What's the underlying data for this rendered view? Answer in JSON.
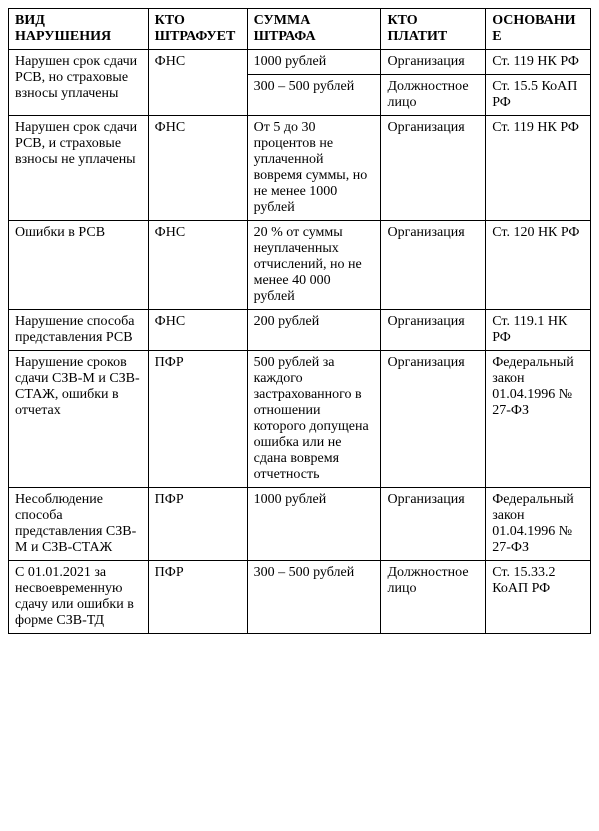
{
  "table": {
    "columns": [
      "ВИД НАРУШЕНИЯ",
      "КТО ШТРАФУЕТ",
      "СУММА ШТРАФА",
      "КТО ПЛАТИТ",
      "ОСНОВАНИЕ"
    ],
    "rows": [
      {
        "violation": "Нарушен срок сдачи РСВ, но страховые взносы уплачены",
        "who_fines": "ФНС",
        "violation_rowspan": 2,
        "who_fines_rowspan": 2,
        "sub": [
          {
            "amount": "1000 рублей",
            "who_pays": "Организация",
            "basis": "Ст. 119 НК РФ"
          },
          {
            "amount": "300 – 500 рублей",
            "who_pays": "Должностное лицо",
            "basis": "Ст. 15.5 КоАП РФ"
          }
        ]
      },
      {
        "violation": "Нарушен срок сдачи РСВ, и страховые взносы не уплачены",
        "who_fines": "ФНС",
        "violation_rowspan": 1,
        "who_fines_rowspan": 1,
        "sub": [
          {
            "amount": "От 5 до 30 процентов не уплаченной вовремя суммы, но не менее 1000 рублей",
            "who_pays": "Организация",
            "basis": "Ст. 119 НК РФ"
          }
        ]
      },
      {
        "violation": "Ошибки в РСВ",
        "who_fines": "ФНС",
        "violation_rowspan": 1,
        "who_fines_rowspan": 1,
        "sub": [
          {
            "amount": "20 % от суммы неуплаченных отчислений, но не менее 40 000 рублей",
            "who_pays": "Организация",
            "basis": "Ст. 120 НК РФ"
          }
        ]
      },
      {
        "violation": "Нарушение способа представления РСВ",
        "who_fines": "ФНС",
        "violation_rowspan": 1,
        "who_fines_rowspan": 1,
        "sub": [
          {
            "amount": "200 рублей",
            "who_pays": "Организация",
            "basis": "Ст. 119.1 НК РФ"
          }
        ]
      },
      {
        "violation": "Нарушение сроков сдачи СЗВ-М и СЗВ-СТАЖ, ошибки в отчетах",
        "who_fines": "ПФР",
        "violation_rowspan": 1,
        "who_fines_rowspan": 1,
        "sub": [
          {
            "amount": "500 рублей за каждого застрахованного в отношении которого допущена ошибка или не сдана вовремя отчетность",
            "who_pays": "Организация",
            "basis": "Федеральный закон 01.04.1996 № 27-ФЗ"
          }
        ]
      },
      {
        "violation": "Несоблюдение способа представления СЗВ-М и СЗВ-СТАЖ",
        "who_fines": "ПФР",
        "violation_rowspan": 1,
        "who_fines_rowspan": 1,
        "sub": [
          {
            "amount": "1000 рублей",
            "who_pays": "Организация",
            "basis": "Федеральный закон 01.04.1996 № 27-ФЗ"
          }
        ]
      },
      {
        "violation": "С 01.01.2021 за несвоевременную сдачу или ошибки в форме СЗВ-ТД",
        "who_fines": "ПФР",
        "violation_rowspan": 1,
        "who_fines_rowspan": 1,
        "sub": [
          {
            "amount": "300 – 500 рублей",
            "who_pays": "Должностное лицо",
            "basis": "Ст. 15.33.2 КоАП РФ"
          }
        ]
      }
    ]
  }
}
